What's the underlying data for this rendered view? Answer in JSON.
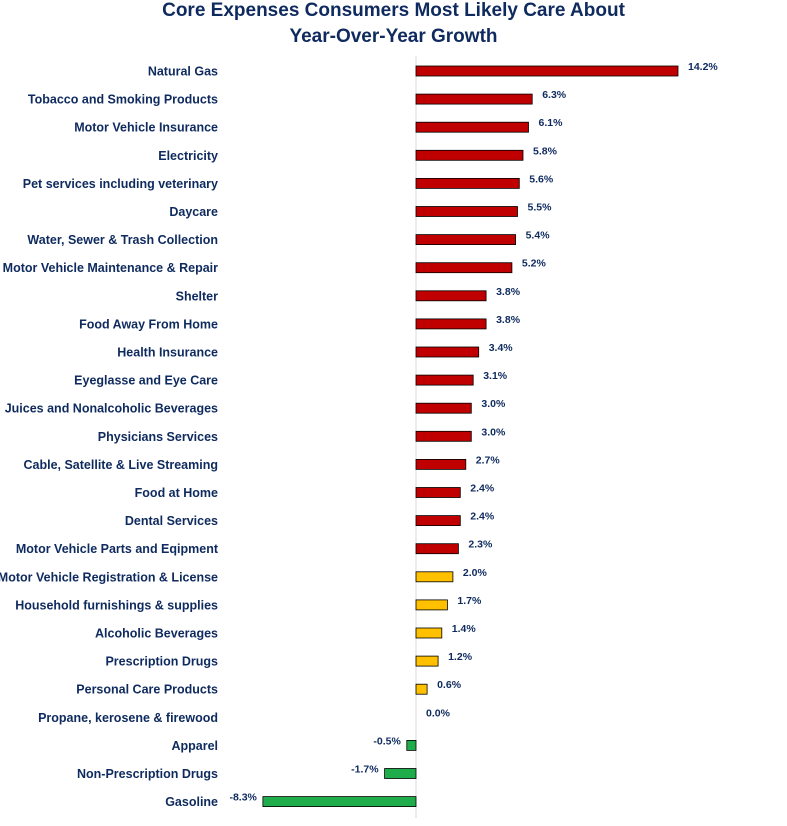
{
  "chart_data": {
    "type": "bar",
    "orientation": "horizontal",
    "title": "Core Expenses Consumers Most Likely Care About",
    "subtitle": "Year-Over-Year Growth",
    "xlabel": "",
    "ylabel": "",
    "xlim": [
      -10,
      15
    ],
    "grid": false,
    "legend": "none",
    "unit": "%",
    "categories": [
      "Natural Gas",
      "Tobacco and Smoking Products",
      "Motor Vehicle Insurance",
      "Electricity",
      "Pet services including veterinary",
      "Daycare",
      "Water, Sewer & Trash Collection",
      "Motor Vehicle Maintenance & Repair",
      "Shelter",
      "Food Away From Home",
      "Health Insurance",
      "Eyeglasse and Eye Care",
      "Juices and Nonalcoholic Beverages",
      "Physicians Services",
      "Cable, Satellite & Live Streaming",
      "Food at Home",
      "Dental Services",
      "Motor Vehicle Parts and Eqipment",
      "Motor Vehicle Registration & License",
      "Household furnishings & supplies",
      "Alcoholic Beverages",
      "Prescription Drugs",
      "Personal Care Products",
      "Propane, kerosene & firewood",
      "Apparel",
      "Non-Prescription Drugs",
      "Gasoline"
    ],
    "values": [
      14.2,
      6.3,
      6.1,
      5.8,
      5.6,
      5.5,
      5.4,
      5.2,
      3.8,
      3.8,
      3.4,
      3.1,
      3.0,
      3.0,
      2.7,
      2.4,
      2.4,
      2.3,
      2.0,
      1.7,
      1.4,
      1.2,
      0.6,
      0.0,
      -0.5,
      -1.7,
      -8.3
    ],
    "value_labels": [
      "14.2%",
      "6.3%",
      "6.1%",
      "5.8%",
      "5.6%",
      "5.5%",
      "5.4%",
      "5.2%",
      "3.8%",
      "3.8%",
      "3.4%",
      "3.1%",
      "3.0%",
      "3.0%",
      "2.7%",
      "2.4%",
      "2.4%",
      "2.3%",
      "2.0%",
      "1.7%",
      "1.4%",
      "1.2%",
      "0.6%",
      "0.0%",
      "-0.5%",
      "-1.7%",
      "-8.3%"
    ],
    "colors": {
      "high": "#c00000",
      "mid": "#ffc000",
      "negative": "#1fad4b",
      "outline": "#000000",
      "axis": "#d9d9d9",
      "text": "#0e2a5e"
    },
    "color_groups": [
      "high",
      "high",
      "high",
      "high",
      "high",
      "high",
      "high",
      "high",
      "high",
      "high",
      "high",
      "high",
      "high",
      "high",
      "high",
      "high",
      "high",
      "high",
      "mid",
      "mid",
      "mid",
      "mid",
      "mid",
      "mid",
      "negative",
      "negative",
      "negative"
    ]
  }
}
